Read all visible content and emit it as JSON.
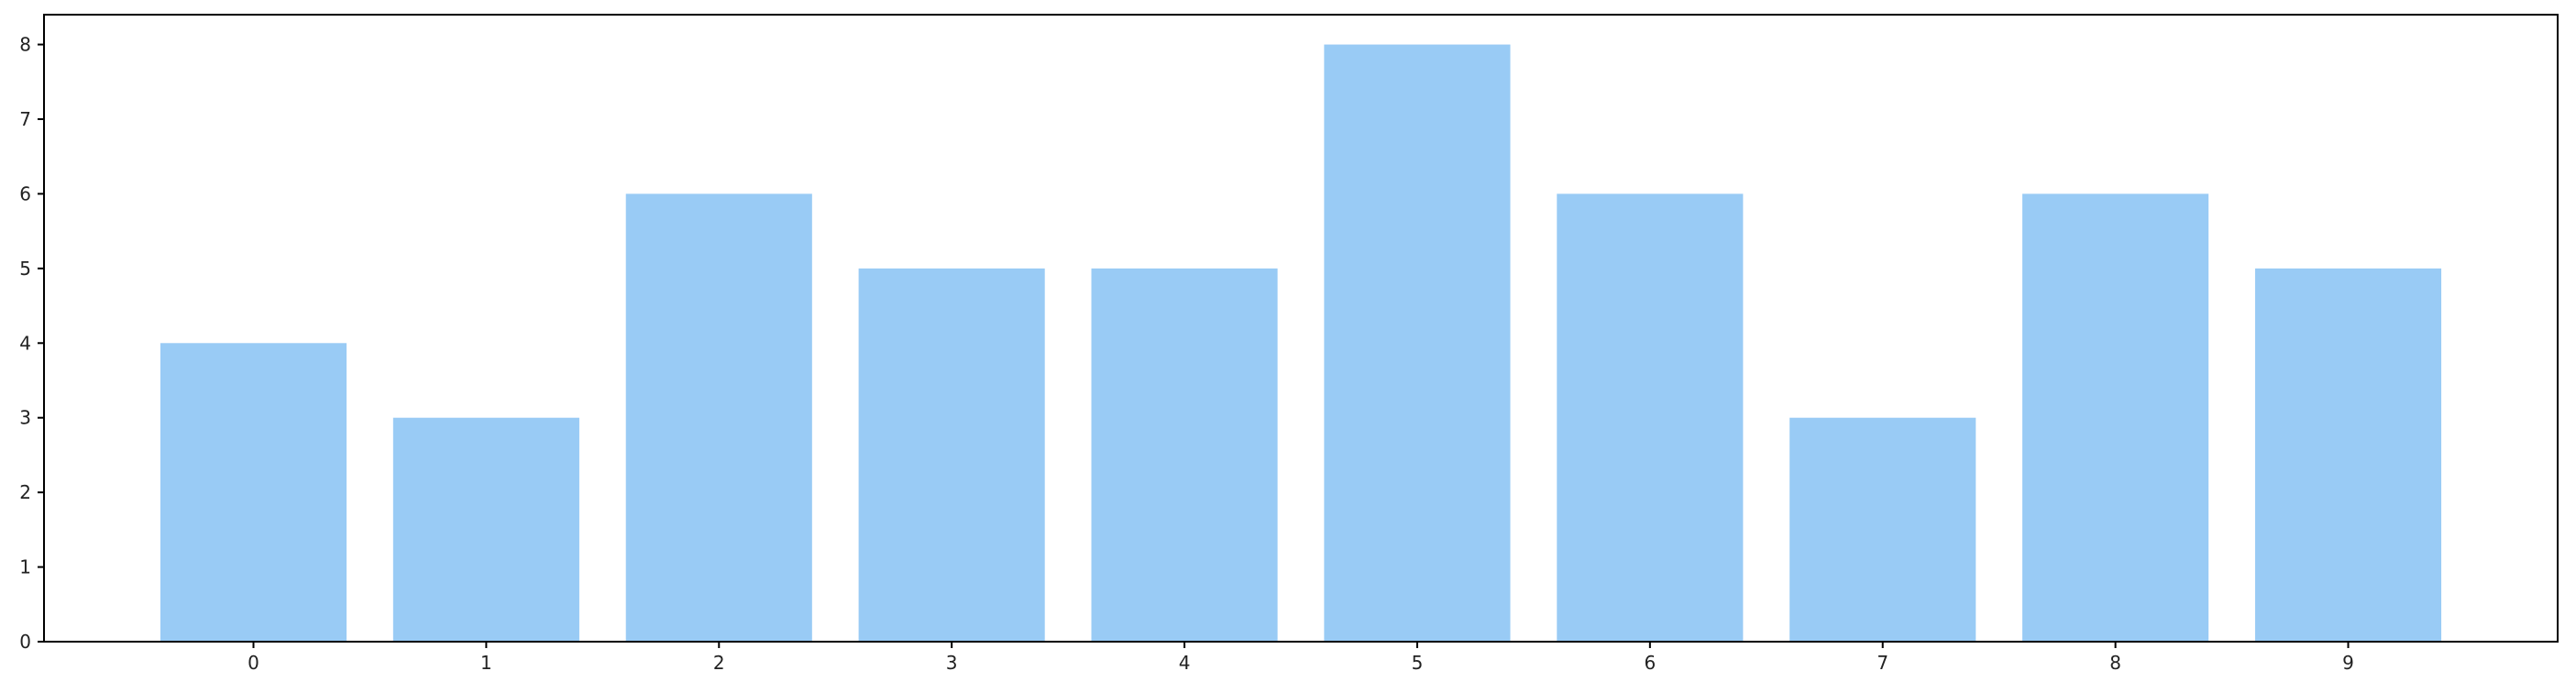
{
  "chart_data": {
    "type": "bar",
    "categories": [
      "0",
      "1",
      "2",
      "3",
      "4",
      "5",
      "6",
      "7",
      "8",
      "9"
    ],
    "values": [
      4,
      3,
      6,
      5,
      5,
      8,
      6,
      3,
      6,
      5
    ],
    "y_ticks": [
      "0",
      "1",
      "2",
      "3",
      "4",
      "5",
      "6",
      "7",
      "8"
    ],
    "ylim": [
      0,
      8.4
    ],
    "title": "",
    "xlabel": "",
    "ylabel": "",
    "grid": false,
    "bar_color": "#99cbf5",
    "axis_color": "#000000"
  }
}
